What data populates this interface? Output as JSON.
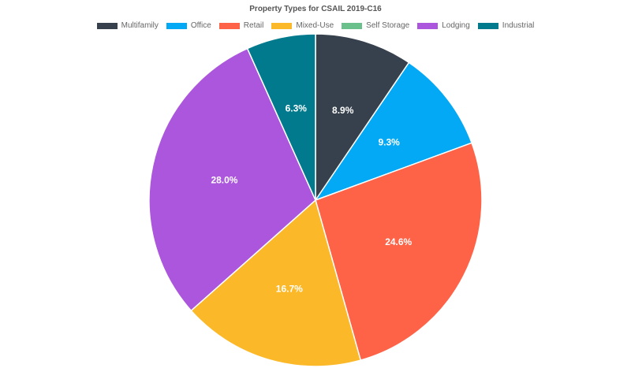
{
  "chart_data": {
    "type": "pie",
    "title": "Property Types for CSAIL 2019-C16",
    "legend_position": "top",
    "categories": [
      "Multifamily",
      "Office",
      "Retail",
      "Mixed-Use",
      "Self Storage",
      "Lodging",
      "Industrial"
    ],
    "values": [
      8.9,
      9.3,
      24.6,
      16.7,
      0.0,
      28.0,
      6.3
    ],
    "labels": [
      "8.9%",
      "9.3%",
      "24.6%",
      "16.7%",
      "",
      "28.0%",
      "6.3%"
    ],
    "colors": [
      "#36414d",
      "#03a9f4",
      "#ff6347",
      "#fbb829",
      "#69c08b",
      "#ab56dc",
      "#027a8e"
    ]
  }
}
